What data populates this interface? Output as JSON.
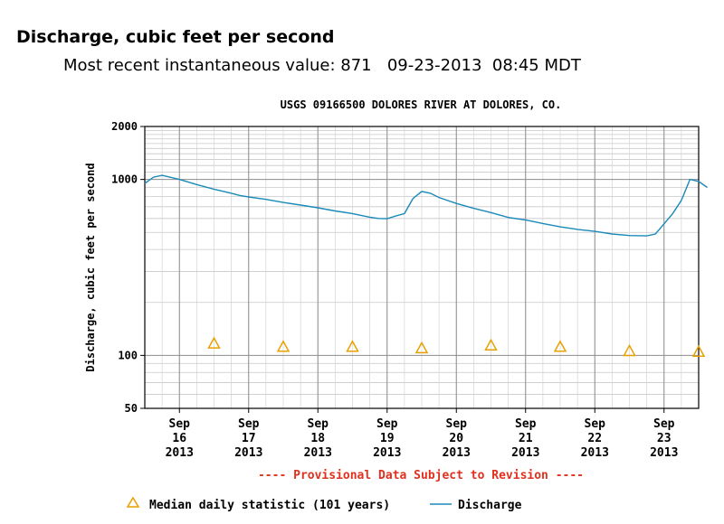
{
  "header": {
    "title": "Discharge, cubic feet per second",
    "recent_label": "Most recent instantaneous value:",
    "recent_value": "871",
    "recent_date": "09-23-2013",
    "recent_time": "08:45 MDT"
  },
  "chart_data": {
    "type": "line",
    "title": "USGS 09166500 DOLORES RIVER AT DOLORES, CO.",
    "ylabel": "Discharge, cubic feet per second",
    "xlabel": "",
    "y_scale": "log",
    "ylim": [
      50,
      2000
    ],
    "y_ticks": [
      {
        "value": 50,
        "label": "50"
      },
      {
        "value": 100,
        "label": "100"
      },
      {
        "value": 1000,
        "label": "1000"
      },
      {
        "value": 2000,
        "label": "2000"
      }
    ],
    "xlim": [
      "2013-09-15 12:00",
      "2013-09-23 12:00"
    ],
    "x_ticks": [
      {
        "date": "2013-09-16 00:00",
        "lines": [
          "Sep",
          "16",
          "2013"
        ]
      },
      {
        "date": "2013-09-17 00:00",
        "lines": [
          "Sep",
          "17",
          "2013"
        ]
      },
      {
        "date": "2013-09-18 00:00",
        "lines": [
          "Sep",
          "18",
          "2013"
        ]
      },
      {
        "date": "2013-09-19 00:00",
        "lines": [
          "Sep",
          "19",
          "2013"
        ]
      },
      {
        "date": "2013-09-20 00:00",
        "lines": [
          "Sep",
          "20",
          "2013"
        ]
      },
      {
        "date": "2013-09-21 00:00",
        "lines": [
          "Sep",
          "21",
          "2013"
        ]
      },
      {
        "date": "2013-09-22 00:00",
        "lines": [
          "Sep",
          "22",
          "2013"
        ]
      },
      {
        "date": "2013-09-23 00:00",
        "lines": [
          "Sep",
          "23",
          "2013"
        ]
      }
    ],
    "grid": true,
    "series": [
      {
        "name": "Discharge",
        "color": "#1a8ab8",
        "points": [
          [
            "2013-09-15 12:00",
            950
          ],
          [
            "2013-09-15 15:00",
            1030
          ],
          [
            "2013-09-15 18:00",
            1055
          ],
          [
            "2013-09-16 00:00",
            1000
          ],
          [
            "2013-09-16 06:00",
            935
          ],
          [
            "2013-09-16 12:00",
            880
          ],
          [
            "2013-09-16 18:00",
            835
          ],
          [
            "2013-09-16 21:00",
            810
          ],
          [
            "2013-09-17 00:00",
            795
          ],
          [
            "2013-09-17 06:00",
            770
          ],
          [
            "2013-09-17 12:00",
            740
          ],
          [
            "2013-09-17 18:00",
            715
          ],
          [
            "2013-09-18 00:00",
            690
          ],
          [
            "2013-09-18 06:00",
            662
          ],
          [
            "2013-09-18 12:00",
            640
          ],
          [
            "2013-09-18 18:00",
            610
          ],
          [
            "2013-09-18 21:00",
            600
          ],
          [
            "2013-09-19 00:00",
            598
          ],
          [
            "2013-09-19 03:00",
            620
          ],
          [
            "2013-09-19 06:00",
            640
          ],
          [
            "2013-09-19 09:00",
            780
          ],
          [
            "2013-09-19 12:00",
            855
          ],
          [
            "2013-09-19 15:00",
            835
          ],
          [
            "2013-09-19 18:00",
            790
          ],
          [
            "2013-09-20 00:00",
            730
          ],
          [
            "2013-09-20 06:00",
            685
          ],
          [
            "2013-09-20 12:00",
            648
          ],
          [
            "2013-09-20 18:00",
            608
          ],
          [
            "2013-09-21 00:00",
            588
          ],
          [
            "2013-09-21 06:00",
            562
          ],
          [
            "2013-09-21 12:00",
            538
          ],
          [
            "2013-09-21 18:00",
            520
          ],
          [
            "2013-09-22 00:00",
            507
          ],
          [
            "2013-09-22 06:00",
            490
          ],
          [
            "2013-09-22 12:00",
            480
          ],
          [
            "2013-09-22 18:00",
            478
          ],
          [
            "2013-09-22 21:00",
            490
          ],
          [
            "2013-09-23 00:00",
            560
          ],
          [
            "2013-09-23 03:00",
            640
          ],
          [
            "2013-09-23 06:00",
            760
          ],
          [
            "2013-09-23 09:00",
            1000
          ],
          [
            "2013-09-23 12:00",
            975
          ],
          [
            "2013-09-23 15:00",
            900
          ]
        ]
      },
      {
        "name": "Median daily statistic (101 years)",
        "color": "#e8a000",
        "marker": "triangle",
        "points": [
          [
            "2013-09-16 12:00",
            117
          ],
          [
            "2013-09-17 12:00",
            112
          ],
          [
            "2013-09-18 12:00",
            112
          ],
          [
            "2013-09-19 12:00",
            110
          ],
          [
            "2013-09-20 12:00",
            114
          ],
          [
            "2013-09-21 12:00",
            112
          ],
          [
            "2013-09-22 12:00",
            106
          ],
          [
            "2013-09-23 12:00",
            105
          ]
        ]
      }
    ],
    "footnote": "---- Provisional Data Subject to Revision ----",
    "legend": {
      "position": "bottom",
      "items": [
        {
          "label": "Median daily statistic (101 years)",
          "symbol": "triangle",
          "color": "#e8a000"
        },
        {
          "label": "Discharge",
          "symbol": "line",
          "color": "#1a8ab8"
        }
      ]
    }
  }
}
